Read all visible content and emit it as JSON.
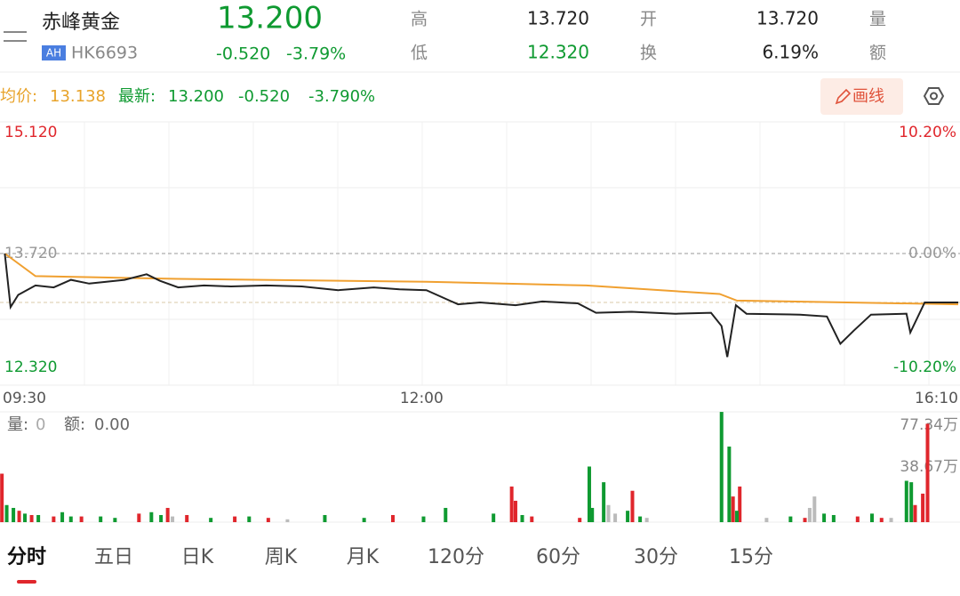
{
  "header": {
    "name": "赤峰黄金",
    "badge": "AH",
    "code": "HK6693",
    "price": "13.200",
    "change": "-0.520",
    "change_pct": "-3.79%",
    "stats": [
      {
        "label": "高",
        "value": "13.720"
      },
      {
        "label": "低",
        "value": "12.320"
      },
      {
        "label": "开",
        "value": "13.720"
      },
      {
        "label": "换",
        "value": "6.19%"
      },
      {
        "label": "量"
      },
      {
        "label": "额"
      }
    ]
  },
  "info_bar": {
    "avg_label": "均价:",
    "avg_value": "13.138",
    "last_label": "最新:",
    "last_value": "13.200",
    "change": "-0.520",
    "change_pct": "-3.790%",
    "draw_button": "画线"
  },
  "volume_info": {
    "volume_label": "量:",
    "volume_value": "0",
    "amount_label": "额:",
    "amount_value": "0.00"
  },
  "tabs": [
    "分时",
    "五日",
    "日K",
    "周K",
    "月K",
    "120分",
    "60分",
    "30分",
    "15分"
  ],
  "active_tab": 0,
  "chart_data": [
    {
      "type": "line",
      "xlim": [
        0,
        100
      ],
      "xticks": [
        {
          "value": 0,
          "label": "09:30"
        },
        {
          "value": 44,
          "label": "12:00"
        },
        {
          "value": 100,
          "label": "16:10"
        }
      ],
      "ylim": [
        12.32,
        15.12
      ],
      "yticks": [
        {
          "value": 15.12,
          "label": "15.120"
        },
        {
          "value": 13.72,
          "label": "13.720"
        },
        {
          "value": 12.32,
          "label": "12.320"
        }
      ],
      "y2lim": [
        -10.2,
        10.2
      ],
      "y2ticks": [
        {
          "value": 10.2,
          "label": "10.20%"
        },
        {
          "value": 0,
          "label": "0.00%"
        },
        {
          "value": -10.2,
          "label": "-10.20%"
        }
      ],
      "series": [
        {
          "color": "#222222",
          "x": [
            0.5,
            1.1,
            1.9,
            3.7,
            5.6,
            7.4,
            9.3,
            11.1,
            13.0,
            15.3,
            16.7,
            18.6,
            21.3,
            24.1,
            27.8,
            31.5,
            35.3,
            39.0,
            41.7,
            44.5,
            47.8,
            50.1,
            53.8,
            56.6,
            60.3,
            62.2,
            65.9,
            70.5,
            74.2,
            75.3,
            75.9,
            76.8,
            77.9,
            83.5,
            86.3,
            87.7,
            89.1,
            90.9,
            94.6,
            95.0,
            96.5,
            100
          ],
          "values": [
            13.72,
            13.15,
            13.28,
            13.38,
            13.36,
            13.44,
            13.4,
            13.42,
            13.44,
            13.5,
            13.43,
            13.36,
            13.38,
            13.37,
            13.38,
            13.37,
            13.33,
            13.36,
            13.34,
            13.33,
            13.18,
            13.2,
            13.17,
            13.21,
            13.19,
            13.09,
            13.1,
            13.08,
            13.09,
            12.95,
            12.62,
            13.17,
            13.08,
            13.07,
            13.05,
            12.76,
            12.9,
            13.07,
            13.08,
            12.88,
            13.2,
            13.2
          ]
        },
        {
          "color": "#f0a030",
          "x": [
            0.5,
            3.7,
            18.6,
            44.5,
            61.2,
            75.1,
            76.9,
            100
          ],
          "values": [
            13.72,
            13.48,
            13.45,
            13.42,
            13.38,
            13.29,
            13.22,
            13.18
          ]
        }
      ]
    },
    {
      "type": "bar",
      "xlim": [
        0,
        100
      ],
      "ylim": [
        0,
        77.34
      ],
      "yticks": [
        {
          "value": 77.34,
          "label": "77.34万"
        },
        {
          "value": 38.67,
          "label": "38.67万"
        }
      ],
      "series": [
        {
          "color": "#e0262c",
          "x": [
            0.2,
            2.0,
            3.3,
            5.6,
            8.5,
            14.5,
            17.5,
            19.5,
            24.5,
            28.0,
            41.0,
            53.4,
            53.8,
            55.5,
            60.5,
            66.0,
            76.5,
            77.2,
            84.0,
            89.5,
            92.0,
            95.5,
            96.3,
            96.8
          ],
          "values": [
            34,
            8,
            5,
            4,
            4,
            6,
            10,
            5,
            4,
            3,
            5,
            25,
            15,
            4,
            3,
            22,
            18,
            25,
            3,
            4,
            3,
            12,
            20,
            69
          ]
        },
        {
          "color": "#0f9a31",
          "x": [
            0.7,
            1.4,
            2.6,
            4.0,
            6.5,
            7.4,
            10.5,
            12.0,
            15.8,
            16.8,
            22.0,
            26.0,
            33.9,
            38.0,
            44.2,
            46.5,
            51.5,
            54.5,
            61.5,
            61.8,
            63.0,
            65.5,
            66.8,
            75.3,
            76.1,
            76.9,
            82.5,
            86.0,
            87.0,
            91.0,
            94.6,
            95.1
          ],
          "values": [
            12,
            10,
            6,
            5,
            7,
            4,
            4,
            3,
            7,
            5,
            3,
            4,
            5,
            3,
            4,
            10,
            6,
            5,
            39,
            10,
            28,
            8,
            4,
            77.3,
            53,
            8,
            4,
            6,
            5,
            6,
            29,
            28
          ]
        },
        {
          "color": "#bbbbbb",
          "x": [
            18.0,
            30.0,
            63.5,
            64.2,
            67.5,
            80.0,
            84.5,
            85.0,
            93.0
          ],
          "values": [
            4,
            2,
            12,
            6,
            3,
            3,
            10,
            18,
            3
          ]
        }
      ]
    }
  ]
}
